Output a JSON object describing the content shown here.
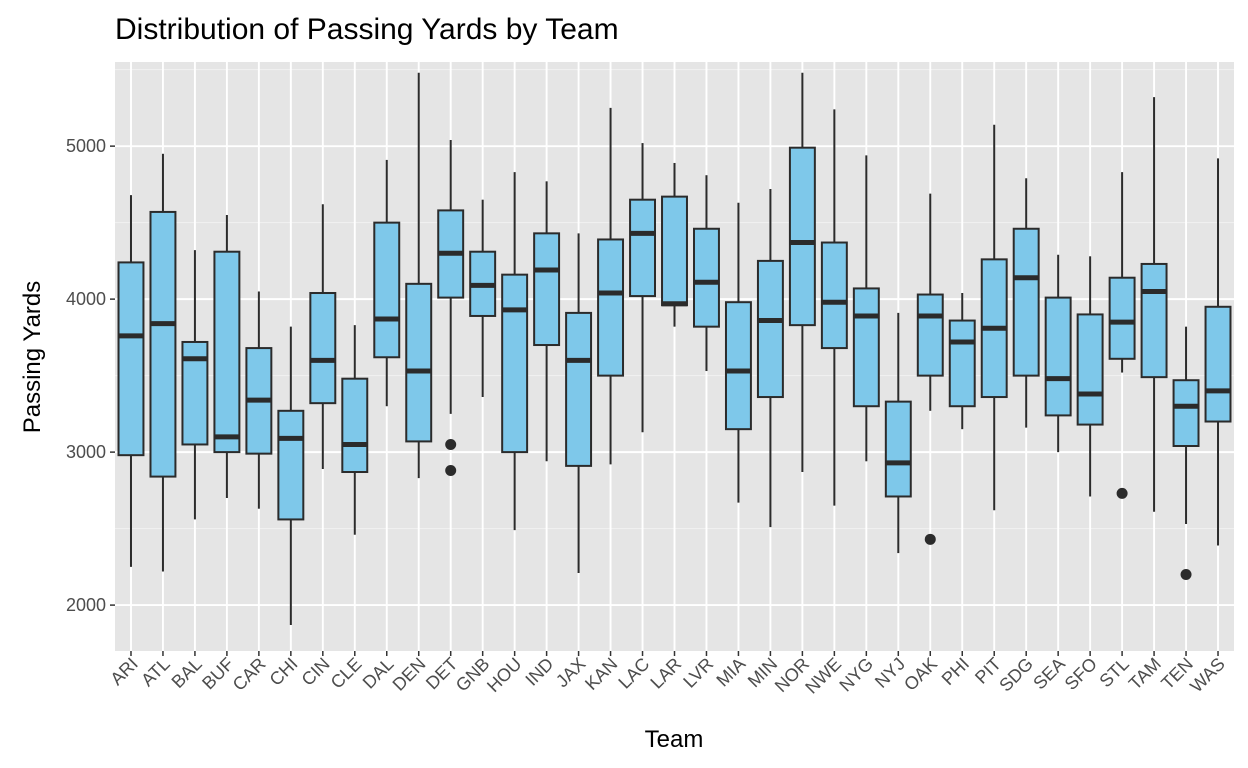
{
  "chart_data": {
    "type": "boxplot",
    "title": "Distribution of Passing Yards by Team",
    "xlabel": "Team",
    "ylabel": "Passing Yards",
    "ylim": [
      1700,
      5550
    ],
    "yticks": [
      2000,
      3000,
      4000,
      5000
    ],
    "grid": true,
    "box_color": "#7EC8EA",
    "panel_color": "#E5E5E5",
    "series": [
      {
        "team": "ARI",
        "min": 2250,
        "q1": 2980,
        "median": 3760,
        "q3": 4240,
        "max": 4680,
        "outliers": []
      },
      {
        "team": "ATL",
        "min": 2220,
        "q1": 2840,
        "median": 3840,
        "q3": 4570,
        "max": 4950,
        "outliers": []
      },
      {
        "team": "BAL",
        "min": 2560,
        "q1": 3050,
        "median": 3610,
        "q3": 3720,
        "max": 4320,
        "outliers": []
      },
      {
        "team": "BUF",
        "min": 2700,
        "q1": 3000,
        "median": 3100,
        "q3": 4310,
        "max": 4550,
        "outliers": []
      },
      {
        "team": "CAR",
        "min": 2630,
        "q1": 2990,
        "median": 3340,
        "q3": 3680,
        "max": 4050,
        "outliers": []
      },
      {
        "team": "CHI",
        "min": 1870,
        "q1": 2560,
        "median": 3090,
        "q3": 3270,
        "max": 3820,
        "outliers": []
      },
      {
        "team": "CIN",
        "min": 2890,
        "q1": 3320,
        "median": 3600,
        "q3": 4040,
        "max": 4620,
        "outliers": []
      },
      {
        "team": "CLE",
        "min": 2460,
        "q1": 2870,
        "median": 3050,
        "q3": 3480,
        "max": 3830,
        "outliers": []
      },
      {
        "team": "DAL",
        "min": 3300,
        "q1": 3620,
        "median": 3870,
        "q3": 4500,
        "max": 4910,
        "outliers": []
      },
      {
        "team": "DEN",
        "min": 2830,
        "q1": 3070,
        "median": 3530,
        "q3": 4100,
        "max": 5480,
        "outliers": []
      },
      {
        "team": "DET",
        "min": 3250,
        "q1": 4010,
        "median": 4300,
        "q3": 4580,
        "max": 5040,
        "outliers": [
          3050,
          2880
        ]
      },
      {
        "team": "GNB",
        "min": 3360,
        "q1": 3890,
        "median": 4090,
        "q3": 4310,
        "max": 4650,
        "outliers": []
      },
      {
        "team": "HOU",
        "min": 2490,
        "q1": 3000,
        "median": 3930,
        "q3": 4160,
        "max": 4830,
        "outliers": []
      },
      {
        "team": "IND",
        "min": 2940,
        "q1": 3700,
        "median": 4190,
        "q3": 4430,
        "max": 4770,
        "outliers": []
      },
      {
        "team": "JAX",
        "min": 2210,
        "q1": 2910,
        "median": 3600,
        "q3": 3910,
        "max": 4430,
        "outliers": []
      },
      {
        "team": "KAN",
        "min": 2920,
        "q1": 3500,
        "median": 4040,
        "q3": 4390,
        "max": 5250,
        "outliers": []
      },
      {
        "team": "LAC",
        "min": 3130,
        "q1": 4020,
        "median": 4430,
        "q3": 4650,
        "max": 5020,
        "outliers": []
      },
      {
        "team": "LAR",
        "min": 3820,
        "q1": 3960,
        "median": 3970,
        "q3": 4670,
        "max": 4890,
        "outliers": []
      },
      {
        "team": "LVR",
        "min": 3530,
        "q1": 3820,
        "median": 4110,
        "q3": 4460,
        "max": 4810,
        "outliers": []
      },
      {
        "team": "MIA",
        "min": 2670,
        "q1": 3150,
        "median": 3530,
        "q3": 3980,
        "max": 4630,
        "outliers": []
      },
      {
        "team": "MIN",
        "min": 2510,
        "q1": 3360,
        "median": 3860,
        "q3": 4250,
        "max": 4720,
        "outliers": []
      },
      {
        "team": "NOR",
        "min": 2870,
        "q1": 3830,
        "median": 4370,
        "q3": 4990,
        "max": 5480,
        "outliers": []
      },
      {
        "team": "NWE",
        "min": 2650,
        "q1": 3680,
        "median": 3980,
        "q3": 4370,
        "max": 5240,
        "outliers": []
      },
      {
        "team": "NYG",
        "min": 2940,
        "q1": 3300,
        "median": 3890,
        "q3": 4070,
        "max": 4940,
        "outliers": []
      },
      {
        "team": "NYJ",
        "min": 2340,
        "q1": 2710,
        "median": 2930,
        "q3": 3330,
        "max": 3910,
        "outliers": []
      },
      {
        "team": "OAK",
        "min": 3270,
        "q1": 3500,
        "median": 3890,
        "q3": 4030,
        "max": 4690,
        "outliers": [
          2430
        ]
      },
      {
        "team": "PHI",
        "min": 3150,
        "q1": 3300,
        "median": 3720,
        "q3": 3860,
        "max": 4040,
        "outliers": []
      },
      {
        "team": "PIT",
        "min": 2620,
        "q1": 3360,
        "median": 3810,
        "q3": 4260,
        "max": 5140,
        "outliers": []
      },
      {
        "team": "SDG",
        "min": 3160,
        "q1": 3500,
        "median": 4140,
        "q3": 4460,
        "max": 4790,
        "outliers": []
      },
      {
        "team": "SEA",
        "min": 3000,
        "q1": 3240,
        "median": 3480,
        "q3": 4010,
        "max": 4290,
        "outliers": []
      },
      {
        "team": "SFO",
        "min": 2710,
        "q1": 3180,
        "median": 3380,
        "q3": 3900,
        "max": 4280,
        "outliers": []
      },
      {
        "team": "STL",
        "min": 3520,
        "q1": 3610,
        "median": 3850,
        "q3": 4140,
        "max": 4830,
        "outliers": [
          2730
        ]
      },
      {
        "team": "TAM",
        "min": 2610,
        "q1": 3490,
        "median": 4050,
        "q3": 4230,
        "max": 5320,
        "outliers": []
      },
      {
        "team": "TEN",
        "min": 2530,
        "q1": 3040,
        "median": 3300,
        "q3": 3470,
        "max": 3820,
        "outliers": [
          2200
        ]
      },
      {
        "team": "WAS",
        "min": 2390,
        "q1": 3200,
        "median": 3400,
        "q3": 3950,
        "max": 4920,
        "outliers": []
      }
    ]
  }
}
